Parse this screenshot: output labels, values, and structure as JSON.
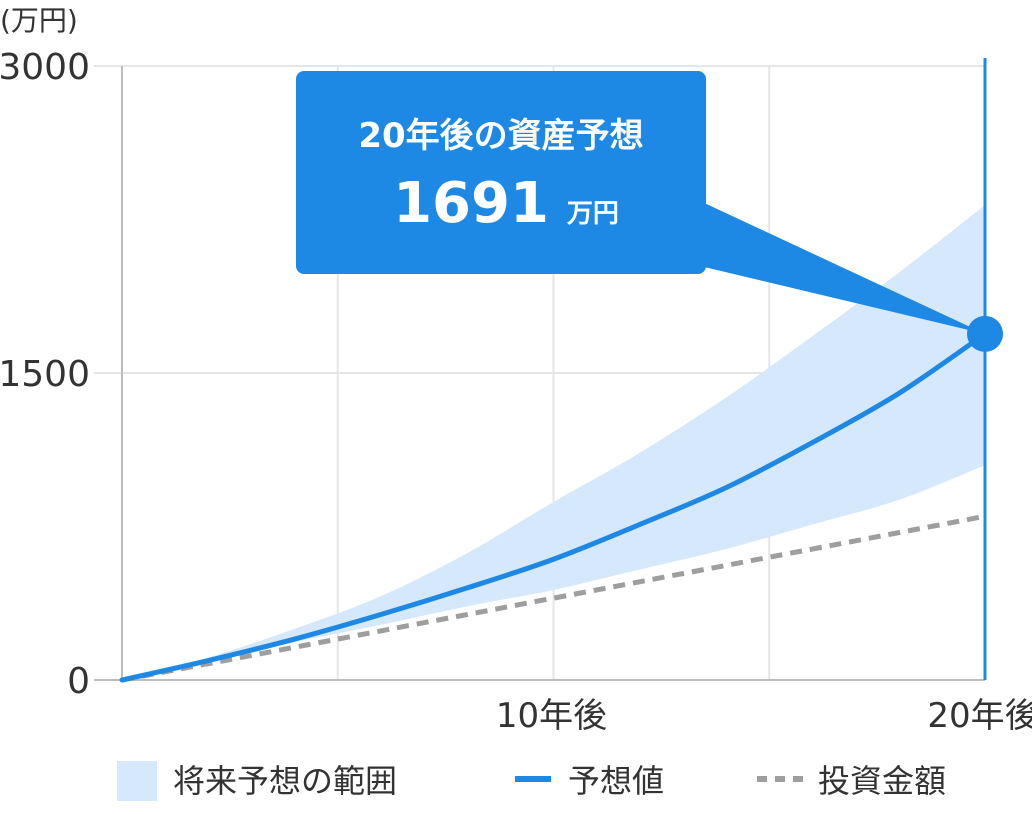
{
  "chart_data": {
    "type": "area",
    "y_unit": "(万円)",
    "ylim": [
      0,
      3000
    ],
    "y_ticks": [
      {
        "value": 0,
        "label": "0"
      },
      {
        "value": 1500,
        "label": "1500"
      },
      {
        "value": 3000,
        "label": "3000"
      }
    ],
    "xlim": [
      0,
      20
    ],
    "x_ticks": [
      {
        "value": 10,
        "label": "10年後"
      },
      {
        "value": 20,
        "label": "20年後"
      }
    ],
    "x_gridlines": [
      0,
      5,
      10,
      15,
      20
    ],
    "y_gridlines": [
      0,
      1500,
      3000
    ],
    "grid": true,
    "series": [
      {
        "name": "将来予想の範囲",
        "kind": "band",
        "color": "#d6e8fb",
        "x": [
          0,
          2,
          4,
          6,
          8,
          10,
          12,
          14,
          16,
          18,
          20
        ],
        "upper": [
          0,
          110,
          250,
          410,
          620,
          870,
          1110,
          1380,
          1680,
          1990,
          2320
        ],
        "lower": [
          0,
          95,
          185,
          270,
          360,
          440,
          540,
          640,
          760,
          880,
          1050
        ]
      },
      {
        "name": "予想値",
        "kind": "line",
        "color": "#1e88e5",
        "x": [
          0,
          2,
          4,
          6,
          8,
          10,
          12,
          14,
          16,
          18,
          20
        ],
        "values": [
          0,
          95,
          200,
          320,
          450,
          590,
          760,
          940,
          1160,
          1400,
          1691
        ]
      },
      {
        "name": "投資金額",
        "kind": "dashed-line",
        "color": "#9e9e9e",
        "x": [
          0,
          20
        ],
        "values": [
          0,
          800
        ]
      }
    ],
    "highlight": {
      "x": 20,
      "value": 1691,
      "title": "20年後の資産予想",
      "value_text": "1691",
      "unit": "万円",
      "color": "#1e88e5"
    },
    "legend_position": "bottom"
  }
}
